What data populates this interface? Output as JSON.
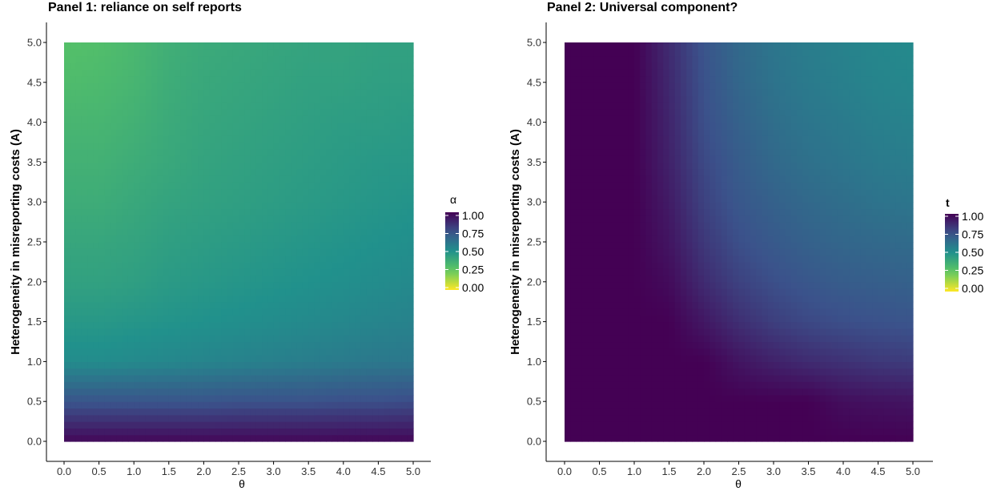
{
  "chart_data": [
    {
      "type": "heatmap",
      "title": "Panel 1: reliance on self reports",
      "xlabel": "θ",
      "ylabel": "Heterogeneity in misreporting costs (A)",
      "xlim": [
        0,
        5
      ],
      "ylim": [
        0,
        5
      ],
      "x_ticks": [
        "0.0",
        "0.5",
        "1.0",
        "1.5",
        "2.0",
        "2.5",
        "3.0",
        "3.5",
        "4.0",
        "4.5",
        "5.0"
      ],
      "y_ticks": [
        "0.0",
        "0.5",
        "1.0",
        "1.5",
        "2.0",
        "2.5",
        "3.0",
        "3.5",
        "4.0",
        "4.5",
        "5.0"
      ],
      "legend": {
        "title": "α",
        "labels": [
          "1.00",
          "0.75",
          "0.50",
          "0.25",
          "0.00"
        ],
        "range": [
          0,
          1
        ],
        "scale": "viridis (reversed)",
        "position": "right"
      },
      "grid": false,
      "x": [
        0,
        0.5,
        1,
        1.5,
        2,
        2.5,
        3,
        3.5,
        4,
        4.5,
        5
      ],
      "y": [
        0,
        0.5,
        1,
        1.5,
        2,
        2.5,
        3,
        3.5,
        4,
        4.5,
        5
      ],
      "z": [
        [
          0.98,
          0.98,
          0.98,
          0.98,
          0.98,
          0.98,
          0.98,
          0.98,
          0.98,
          0.98,
          0.98
        ],
        [
          0.74,
          0.74,
          0.74,
          0.74,
          0.74,
          0.75,
          0.75,
          0.75,
          0.76,
          0.76,
          0.77
        ],
        [
          0.52,
          0.52,
          0.53,
          0.54,
          0.55,
          0.56,
          0.57,
          0.58,
          0.59,
          0.6,
          0.6
        ],
        [
          0.47,
          0.47,
          0.48,
          0.49,
          0.5,
          0.51,
          0.52,
          0.53,
          0.54,
          0.55,
          0.56
        ],
        [
          0.43,
          0.43,
          0.44,
          0.46,
          0.47,
          0.48,
          0.49,
          0.5,
          0.51,
          0.52,
          0.53
        ],
        [
          0.41,
          0.41,
          0.42,
          0.44,
          0.45,
          0.46,
          0.47,
          0.48,
          0.49,
          0.5,
          0.51
        ],
        [
          0.38,
          0.38,
          0.4,
          0.42,
          0.43,
          0.44,
          0.45,
          0.46,
          0.47,
          0.48,
          0.49
        ],
        [
          0.36,
          0.36,
          0.38,
          0.4,
          0.42,
          0.43,
          0.44,
          0.45,
          0.46,
          0.47,
          0.47
        ],
        [
          0.34,
          0.34,
          0.36,
          0.39,
          0.41,
          0.42,
          0.43,
          0.44,
          0.45,
          0.45,
          0.46
        ],
        [
          0.31,
          0.32,
          0.34,
          0.38,
          0.4,
          0.41,
          0.42,
          0.43,
          0.43,
          0.44,
          0.44
        ],
        [
          0.29,
          0.3,
          0.33,
          0.37,
          0.39,
          0.4,
          0.41,
          0.42,
          0.42,
          0.43,
          0.43
        ]
      ]
    },
    {
      "type": "heatmap",
      "title": "Panel 2: Universal component?",
      "xlabel": "θ",
      "ylabel": "Heterogeneity in misreporting costs (A)",
      "xlim": [
        0,
        5
      ],
      "ylim": [
        0,
        5
      ],
      "x_ticks": [
        "0.0",
        "0.5",
        "1.0",
        "1.5",
        "2.0",
        "2.5",
        "3.0",
        "3.5",
        "4.0",
        "4.5",
        "5.0"
      ],
      "y_ticks": [
        "0.0",
        "0.5",
        "1.0",
        "1.5",
        "2.0",
        "2.5",
        "3.0",
        "3.5",
        "4.0",
        "4.5",
        "5.0"
      ],
      "legend": {
        "title": "t",
        "labels": [
          "1.00",
          "0.75",
          "0.50",
          "0.25",
          "0.00"
        ],
        "range": [
          0,
          1
        ],
        "scale": "viridis (reversed)",
        "position": "right"
      },
      "grid": false,
      "x": [
        0,
        0.5,
        1,
        1.5,
        2,
        2.5,
        3,
        3.5,
        4,
        4.5,
        5
      ],
      "y": [
        0,
        0.5,
        1,
        1.5,
        2,
        2.5,
        3,
        3.5,
        4,
        4.5,
        5
      ],
      "z": [
        [
          1.0,
          1.0,
          1.0,
          1.0,
          1.0,
          1.0,
          1.0,
          1.0,
          1.0,
          1.0,
          1.0
        ],
        [
          1.0,
          1.0,
          1.0,
          1.0,
          1.0,
          1.0,
          1.0,
          1.0,
          0.96,
          0.95,
          0.94
        ],
        [
          1.0,
          1.0,
          1.0,
          1.0,
          1.0,
          0.94,
          0.9,
          0.87,
          0.85,
          0.83,
          0.82
        ],
        [
          1.0,
          1.0,
          1.0,
          1.0,
          0.93,
          0.86,
          0.81,
          0.78,
          0.76,
          0.75,
          0.74
        ],
        [
          1.0,
          1.0,
          1.0,
          0.97,
          0.87,
          0.8,
          0.76,
          0.73,
          0.71,
          0.7,
          0.69
        ],
        [
          1.0,
          1.0,
          1.0,
          0.94,
          0.83,
          0.76,
          0.72,
          0.69,
          0.67,
          0.66,
          0.65
        ],
        [
          1.0,
          1.0,
          1.0,
          0.92,
          0.8,
          0.73,
          0.69,
          0.66,
          0.64,
          0.62,
          0.61
        ],
        [
          1.0,
          1.0,
          1.0,
          0.9,
          0.78,
          0.71,
          0.66,
          0.63,
          0.61,
          0.59,
          0.58
        ],
        [
          1.0,
          1.0,
          1.0,
          0.89,
          0.76,
          0.69,
          0.64,
          0.61,
          0.59,
          0.57,
          0.56
        ],
        [
          1.0,
          1.0,
          1.0,
          0.88,
          0.75,
          0.67,
          0.62,
          0.59,
          0.57,
          0.55,
          0.54
        ],
        [
          1.0,
          1.0,
          1.0,
          0.87,
          0.74,
          0.66,
          0.61,
          0.58,
          0.56,
          0.54,
          0.53
        ]
      ]
    }
  ]
}
